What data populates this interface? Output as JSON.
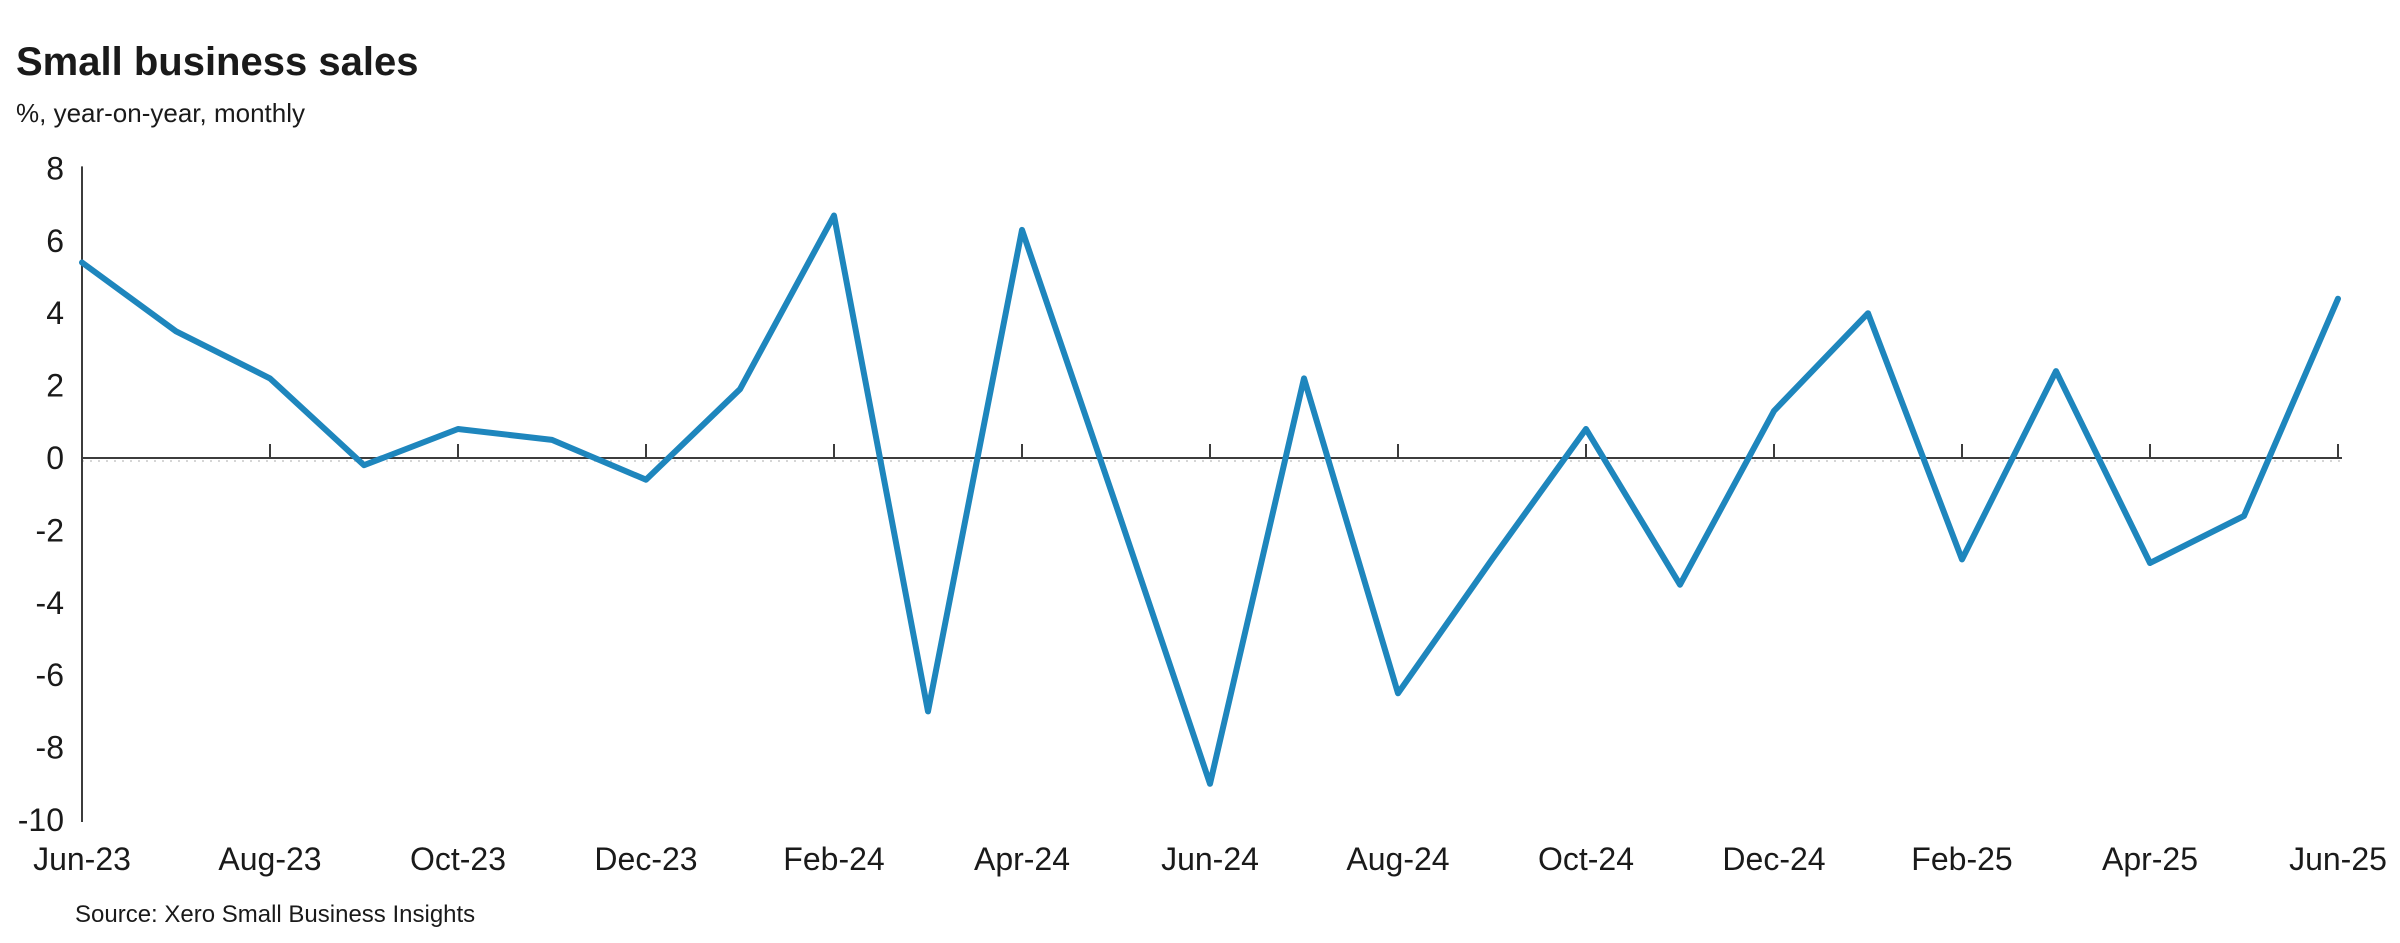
{
  "header": {
    "title": "Small business sales",
    "subtitle": "%, year-on-year, monthly"
  },
  "footer": {
    "source": "Source: Xero Small Business Insights"
  },
  "chart_data": {
    "type": "line",
    "title": "Small business sales",
    "subtitle": "%, year-on-year, monthly",
    "source": "Source: Xero Small Business Insights",
    "categories": [
      "Jun-23",
      "Jul-23",
      "Aug-23",
      "Sep-23",
      "Oct-23",
      "Nov-23",
      "Dec-23",
      "Jan-24",
      "Feb-24",
      "Mar-24",
      "Apr-24",
      "May-24",
      "Jun-24",
      "Jul-24",
      "Aug-24",
      "Sep-24",
      "Oct-24",
      "Nov-24",
      "Dec-24",
      "Jan-25",
      "Feb-25",
      "Mar-25",
      "Apr-25",
      "May-25",
      "Jun-25"
    ],
    "values": [
      5.4,
      3.5,
      2.2,
      -0.2,
      0.8,
      0.5,
      -0.6,
      1.9,
      6.7,
      -7.0,
      6.3,
      -1.3,
      -9.0,
      2.2,
      -6.5,
      -2.8,
      0.8,
      -3.5,
      1.3,
      4.0,
      -2.8,
      2.4,
      -2.9,
      -1.6,
      4.4
    ],
    "series": [
      {
        "name": "Small business sales (% y/y)",
        "values": [
          5.4,
          3.5,
          2.2,
          -0.2,
          0.8,
          0.5,
          -0.6,
          1.9,
          6.7,
          -7.0,
          6.3,
          -1.3,
          -9.0,
          2.2,
          -6.5,
          -2.8,
          0.8,
          -3.5,
          1.3,
          4.0,
          -2.8,
          2.4,
          -2.9,
          -1.6,
          4.4
        ]
      }
    ],
    "x_tick_labels": [
      "Jun-23",
      "Aug-23",
      "Oct-23",
      "Dec-23",
      "Feb-24",
      "Apr-24",
      "Jun-24",
      "Aug-24",
      "Oct-24",
      "Dec-24",
      "Feb-25",
      "Apr-25",
      "Jun-25"
    ],
    "x_tick_every": 2,
    "y_ticks": [
      8,
      6,
      4,
      2,
      0,
      -2,
      -4,
      -6,
      -8,
      -10
    ],
    "ylim": [
      -10,
      8
    ],
    "xlabel": "",
    "ylabel": "",
    "legend": "none",
    "grid": "zero-baseline-only",
    "line_color": "#1e86bd",
    "axis_color": "#3c3c3c",
    "dotted_baseline_color": "#c8c8c8"
  }
}
